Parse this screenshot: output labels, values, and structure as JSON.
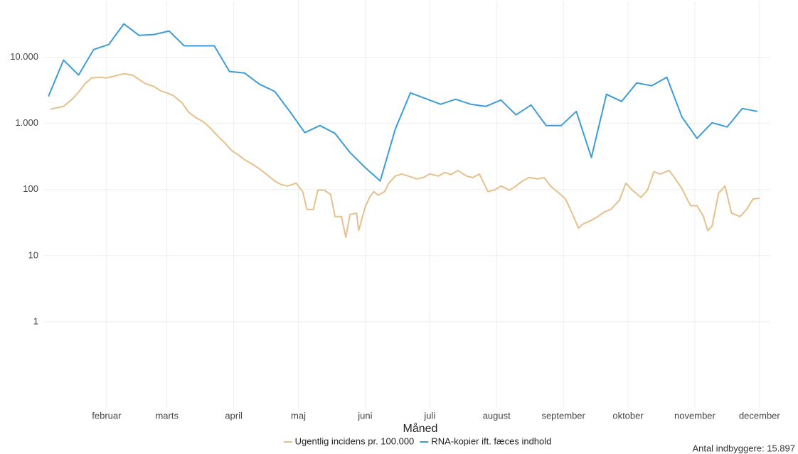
{
  "chart_data": {
    "type": "line",
    "log_y": true,
    "grid": true,
    "x_label": "Måned",
    "caption": "Antal indbyggere: 15.897",
    "xlim": [
      3,
      340
    ],
    "xticks": [
      {
        "value": 32,
        "label": "februar"
      },
      {
        "value": 60,
        "label": "marts"
      },
      {
        "value": 91,
        "label": "april"
      },
      {
        "value": 121,
        "label": "maj"
      },
      {
        "value": 152,
        "label": "juni"
      },
      {
        "value": 182,
        "label": "juli"
      },
      {
        "value": 213,
        "label": "august"
      },
      {
        "value": 244,
        "label": "september"
      },
      {
        "value": 274,
        "label": "oktober"
      },
      {
        "value": 305,
        "label": "november"
      },
      {
        "value": 335,
        "label": "december"
      }
    ],
    "ylim": [
      0.05,
      70000
    ],
    "yticks": [
      1,
      10,
      100,
      {
        "value": 1000,
        "label": "1.000"
      },
      {
        "value": 10000,
        "label": "10.000"
      }
    ],
    "legend": "bottom",
    "series": [
      {
        "name": "Ugentlig incidens pr. 100.000",
        "color": "#e6c08c",
        "x": [
          6,
          9,
          12,
          16,
          19,
          22,
          25,
          29,
          32,
          35,
          40,
          44,
          47,
          50,
          54,
          57,
          60,
          63,
          67,
          70,
          73,
          77,
          80,
          83,
          87,
          90,
          93,
          96,
          100,
          103,
          106,
          110,
          113,
          116,
          120,
          123,
          125,
          128,
          130,
          133,
          136,
          138,
          141,
          143,
          145,
          148,
          149,
          152,
          154,
          156,
          158,
          161,
          163,
          166,
          169,
          172,
          176,
          179,
          182,
          186,
          189,
          192,
          195,
          199,
          202,
          205,
          209,
          212,
          215,
          219,
          222,
          225,
          228,
          232,
          235,
          238,
          242,
          245,
          248,
          251,
          253,
          256,
          260,
          263,
          266,
          270,
          273,
          276,
          280,
          283,
          286,
          289,
          293,
          296,
          299,
          303,
          306,
          309,
          311,
          313,
          316,
          319,
          322,
          326,
          329,
          332,
          335
        ],
        "values": [
          1640,
          1730,
          1810,
          2320,
          2970,
          4000,
          4880,
          5000,
          4880,
          5130,
          5660,
          5390,
          4640,
          4000,
          3620,
          3120,
          2900,
          2630,
          2050,
          1490,
          1250,
          1050,
          862,
          673,
          500,
          390,
          337,
          283,
          238,
          205,
          172,
          135,
          119,
          113,
          125,
          93,
          50,
          50,
          98,
          98,
          84,
          39,
          39,
          19,
          42,
          44,
          24,
          54,
          76,
          93,
          82,
          93,
          125,
          160,
          172,
          160,
          145,
          152,
          172,
          160,
          181,
          168,
          195,
          160,
          152,
          172,
          93,
          98,
          113,
          98,
          113,
          135,
          152,
          145,
          152,
          113,
          88,
          72,
          44,
          26,
          30,
          33,
          39,
          46,
          50,
          69,
          125,
          98,
          76,
          98,
          186,
          172,
          195,
          145,
          103,
          57,
          57,
          39,
          24,
          28,
          88,
          113,
          44,
          39,
          50,
          72,
          74
        ]
      },
      {
        "name": "RNA-kopier ift. fæces indhold",
        "color": "#3d9bd6",
        "x": [
          5,
          12,
          19,
          26,
          33,
          40,
          47,
          54,
          61,
          68,
          75,
          82,
          89,
          96,
          103,
          110,
          117,
          124,
          131,
          138,
          145,
          152,
          159,
          166,
          173,
          180,
          187,
          194,
          201,
          208,
          215,
          222,
          229,
          236,
          243,
          250,
          257,
          264,
          271,
          278,
          285,
          292,
          299,
          306,
          313,
          320,
          327,
          334
        ],
        "values": [
          2560,
          9060,
          5390,
          13100,
          15600,
          32000,
          21500,
          22100,
          25000,
          14900,
          14900,
          14900,
          6100,
          5800,
          3900,
          3050,
          1520,
          725,
          930,
          707,
          362,
          215,
          135,
          820,
          2900,
          2380,
          1950,
          2320,
          1950,
          1810,
          2260,
          1345,
          1900,
          930,
          930,
          1520,
          305,
          2760,
          2150,
          4100,
          3720,
          5000,
          1250,
          595,
          1025,
          885,
          1680,
          1520
        ]
      }
    ]
  }
}
